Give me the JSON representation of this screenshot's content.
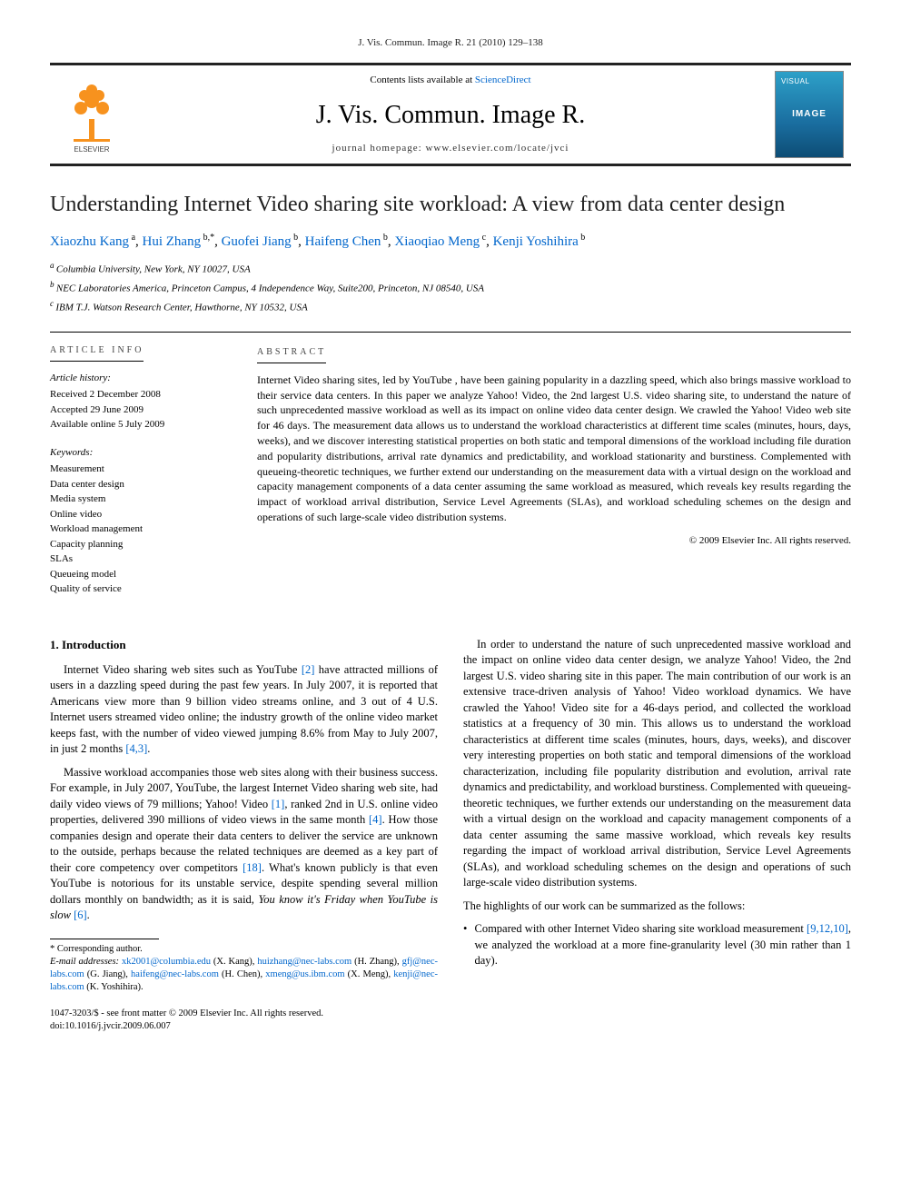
{
  "running_head": "J. Vis. Commun. Image R. 21 (2010) 129–138",
  "banner": {
    "contents_prefix": "Contents lists available at ",
    "contents_link": "ScienceDirect",
    "journal_title": "J. Vis. Commun. Image R.",
    "homepage_prefix": "journal homepage: ",
    "homepage_url": "www.elsevier.com/locate/jvci",
    "publisher_logo_label": "ELSEVIER",
    "cover_top": "VISUAL",
    "cover_mid": "IMAGE"
  },
  "article": {
    "title": "Understanding Internet Video sharing site workload: A view from data center design",
    "authors_html_parts": [
      {
        "name": "Xiaozhu Kang",
        "sup": "a"
      },
      {
        "name": "Hui Zhang",
        "sup": "b,*"
      },
      {
        "name": "Guofei Jiang",
        "sup": "b"
      },
      {
        "name": "Haifeng Chen",
        "sup": "b"
      },
      {
        "name": "Xiaoqiao Meng",
        "sup": "c"
      },
      {
        "name": "Kenji Yoshihira",
        "sup": "b"
      }
    ],
    "affiliations": [
      {
        "tag": "a",
        "text": "Columbia University, New York, NY 10027, USA"
      },
      {
        "tag": "b",
        "text": "NEC Laboratories America, Princeton Campus, 4 Independence Way, Suite200, Princeton, NJ 08540, USA"
      },
      {
        "tag": "c",
        "text": "IBM T.J. Watson Research Center, Hawthorne, NY 10532, USA"
      }
    ]
  },
  "info": {
    "heading": "article info",
    "history_head": "Article history:",
    "history": [
      "Received 2 December 2008",
      "Accepted 29 June 2009",
      "Available online 5 July 2009"
    ],
    "keywords_head": "Keywords:",
    "keywords": [
      "Measurement",
      "Data center design",
      "Media system",
      "Online video",
      "Workload management",
      "Capacity planning",
      "SLAs",
      "Queueing model",
      "Quality of service"
    ]
  },
  "abstract": {
    "heading": "abstract",
    "text": "Internet Video sharing sites, led by YouTube , have been gaining popularity in a dazzling speed, which also brings massive workload to their service data centers. In this paper we analyze Yahoo! Video, the 2nd largest U.S. video sharing site, to understand the nature of such unprecedented massive workload as well as its impact on online video data center design. We crawled the Yahoo! Video web site for 46 days. The measurement data allows us to understand the workload characteristics at different time scales (minutes, hours, days, weeks), and we discover interesting statistical properties on both static and temporal dimensions of the workload including file duration and popularity distributions, arrival rate dynamics and predictability, and workload stationarity and burstiness. Complemented with queueing-theoretic techniques, we further extend our understanding on the measurement data with a virtual design on the workload and capacity management components of a data center assuming the same workload as measured, which reveals key results regarding the impact of workload arrival distribution, Service Level Agreements (SLAs), and workload scheduling schemes on the design and operations of such large-scale video distribution systems.",
    "copyright": "© 2009 Elsevier Inc. All rights reserved."
  },
  "body": {
    "section_heading": "1. Introduction",
    "p1_pre": "Internet Video sharing web sites such as YouTube ",
    "p1_ref1": "[2]",
    "p1_mid": " have attracted millions of users in a dazzling speed during the past few years. In July 2007, it is reported that Americans view more than 9 billion video streams online, and 3 out of 4 U.S. Internet users streamed video online; the industry growth of the online video market keeps fast, with the number of video viewed jumping 8.6% from May to July 2007, in just 2 months ",
    "p1_ref2": "[4,3]",
    "p1_post": ".",
    "p2_pre": "Massive workload accompanies those web sites along with their business success. For example, in July 2007, YouTube, the largest Internet Video sharing web site, had daily video views of 79 millions; Yahoo! Video ",
    "p2_ref1": "[1]",
    "p2_mid1": ", ranked 2nd in U.S. online video properties, delivered 390 millions of video views in the same month ",
    "p2_ref2": "[4]",
    "p2_mid2": ". How those companies design and operate their data centers to deliver the service are unknown to the outside, perhaps because the related techniques are deemed as a key part of their core competency over competitors ",
    "p2_ref3": "[18]",
    "p2_mid3": ". What's known publicly is that even YouTube is notorious for its unstable service, despite spending several million dollars monthly on bandwidth; as it is said, ",
    "p2_italic": "You know it's Friday when YouTube is slow",
    "p2_ref4": " [6]",
    "p2_post": ".",
    "p3": "In order to understand the nature of such unprecedented massive workload and the impact on online video data center design, we analyze Yahoo! Video, the 2nd largest U.S. video sharing site in this paper. The main contribution of our work is an extensive trace-driven analysis of Yahoo! Video workload dynamics. We have crawled the Yahoo! Video site for a 46-days period, and collected the workload statistics at a frequency of 30 min. This allows us to understand the workload characteristics at different time scales (minutes, hours, days, weeks), and discover very interesting properties on both static and temporal dimensions of the workload characterization, including file popularity distribution and evolution, arrival rate dynamics and predictability, and workload burstiness. Complemented with queueing-theoretic techniques, we further extends our understanding on the measurement data with a virtual design on the workload and capacity management components of a data center assuming the same massive workload, which reveals key results regarding the impact of workload arrival distribution, Service Level Agreements (SLAs), and workload scheduling schemes on the design and operations of such large-scale video distribution systems.",
    "p4": "The highlights of our work can be summarized as the follows:",
    "bullet_pre": "Compared with other Internet Video sharing site workload measurement ",
    "bullet_ref": "[9,12,10]",
    "bullet_post": ", we analyzed the workload at a more fine-granularity level (30 min rather than 1 day)."
  },
  "corr": {
    "star": "* Corresponding author.",
    "emails_label": "E-mail addresses:",
    "entries": [
      {
        "email": "xk2001@columbia.edu",
        "who": "(X. Kang)"
      },
      {
        "email": "huizhang@nec-labs.com",
        "who": "(H. Zhang)"
      },
      {
        "email": "gfj@nec-labs.com",
        "who": "(G. Jiang)"
      },
      {
        "email": "haifeng@nec-labs.com",
        "who": "(H. Chen)"
      },
      {
        "email": "xmeng@us.ibm.com",
        "who": "(X. Meng)"
      },
      {
        "email": "kenji@nec-labs.com",
        "who": "(K. Yoshihira)"
      }
    ]
  },
  "footer": {
    "left_line1": "1047-3203/$ - see front matter © 2009 Elsevier Inc. All rights reserved.",
    "left_line2": "doi:10.1016/j.jvcir.2009.06.007"
  },
  "colors": {
    "link": "#0066cc",
    "rule": "#000000",
    "elsevier_orange": "#f7921e",
    "cover_gradient_top": "#2da0c8",
    "cover_gradient_bot": "#0d4d75"
  },
  "typography": {
    "body_pt": 12.5,
    "title_pt": 24,
    "banner_title_pt": 28,
    "small_pt": 11
  }
}
